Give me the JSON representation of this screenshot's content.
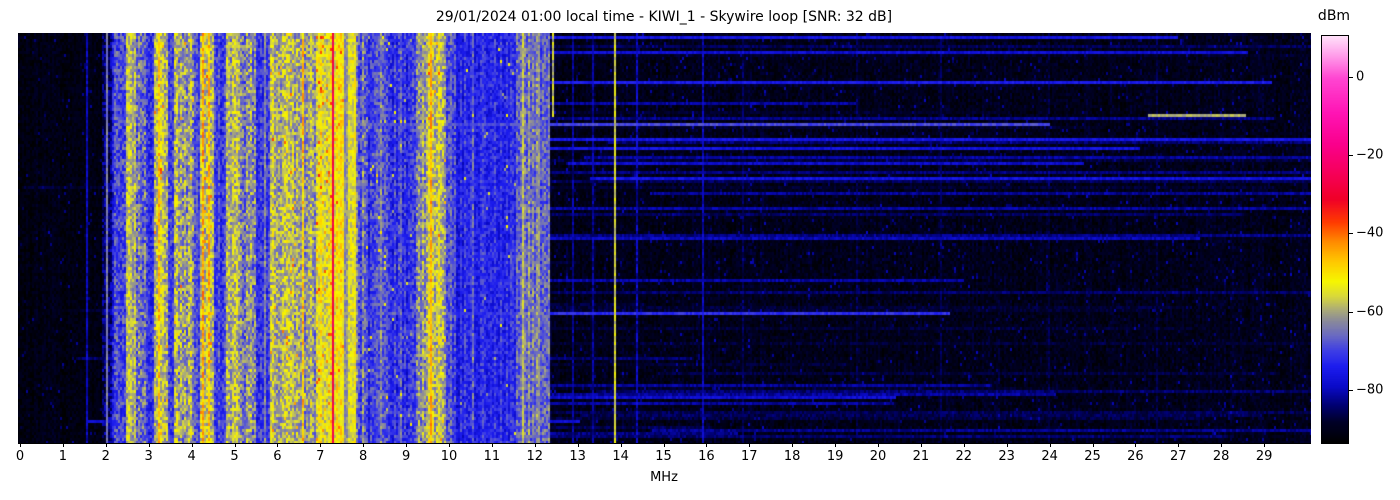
{
  "chart_data": {
    "type": "heatmap",
    "subtype": "hf-spectrum-waterfall",
    "title": "29/01/2024 01:00 local time - KIWI_1 - Skywire loop [SNR: 32 dB]",
    "xlabel": "MHz",
    "x_range": [
      0,
      30.1
    ],
    "x_ticks": [
      0,
      1,
      2,
      3,
      4,
      5,
      6,
      7,
      8,
      9,
      10,
      11,
      12,
      13,
      14,
      15,
      16,
      17,
      18,
      19,
      20,
      21,
      22,
      23,
      24,
      25,
      26,
      27,
      28,
      29
    ],
    "y_axis": "time (unlabeled waterfall rows)",
    "grid": false,
    "seed": 1327,
    "colorbar": {
      "label": "dBm",
      "vmin": -93.3,
      "vmax": 10.7,
      "ticks": [
        {
          "v": 0,
          "label": "0"
        },
        {
          "v": -20,
          "label": "−20"
        },
        {
          "v": -40,
          "label": "−40"
        },
        {
          "v": -60,
          "label": "−60"
        },
        {
          "v": -80,
          "label": "−80"
        }
      ]
    },
    "colormap": {
      "stops": [
        [
          -93.5,
          [
            0,
            0,
            0
          ]
        ],
        [
          -88,
          [
            0,
            0,
            40
          ]
        ],
        [
          -84,
          [
            0,
            0,
            110
          ]
        ],
        [
          -79,
          [
            10,
            10,
            200
          ]
        ],
        [
          -74,
          [
            28,
            28,
            238
          ]
        ],
        [
          -70,
          [
            60,
            60,
            230
          ]
        ],
        [
          -66,
          [
            105,
            105,
            195
          ]
        ],
        [
          -62,
          [
            140,
            140,
            152
          ]
        ],
        [
          -59,
          [
            175,
            175,
            115
          ]
        ],
        [
          -56,
          [
            215,
            215,
            60
          ]
        ],
        [
          -52,
          [
            246,
            246,
            0
          ]
        ],
        [
          -47,
          [
            255,
            200,
            0
          ]
        ],
        [
          -42,
          [
            255,
            140,
            0
          ]
        ],
        [
          -37,
          [
            255,
            60,
            0
          ]
        ],
        [
          -31,
          [
            240,
            0,
            40
          ]
        ],
        [
          -24,
          [
            246,
            0,
            92
          ]
        ],
        [
          -17,
          [
            250,
            0,
            140
          ]
        ],
        [
          -9,
          [
            255,
            20,
            180
          ]
        ],
        [
          0,
          [
            255,
            70,
            210
          ]
        ],
        [
          6,
          [
            255,
            160,
            235
          ]
        ],
        [
          11,
          [
            255,
            228,
            250
          ]
        ]
      ]
    },
    "bands": [
      {
        "range": [
          0.0,
          1.9
        ],
        "level": -91,
        "cell_var": 2.5,
        "col_var": 1.2,
        "dots": {
          "p": 0.02,
          "boost": 7
        }
      },
      {
        "range": [
          1.9,
          2.15
        ],
        "level": -82,
        "cell_var": 6,
        "col_var": 4
      },
      {
        "range": [
          2.15,
          2.45
        ],
        "level": -72,
        "cell_var": 7,
        "col_var": 4
      },
      {
        "range": [
          2.45,
          2.72
        ],
        "level": -58,
        "cell_var": 6,
        "col_var": 3
      },
      {
        "range": [
          2.72,
          2.95
        ],
        "level": -64,
        "cell_var": 8,
        "col_var": 4
      },
      {
        "range": [
          2.95,
          3.12
        ],
        "level": -71,
        "cell_var": 6,
        "col_var": 3
      },
      {
        "range": [
          3.12,
          3.45
        ],
        "level": -58,
        "cell_var": 7,
        "col_var": 3,
        "dots": {
          "p": 0.03,
          "boost": 12
        }
      },
      {
        "range": [
          3.45,
          3.6
        ],
        "level": -70,
        "cell_var": 6,
        "col_var": 3
      },
      {
        "range": [
          3.6,
          4.05
        ],
        "level": -60,
        "cell_var": 8,
        "col_var": 4,
        "dots": {
          "p": 0.02,
          "boost": 12
        }
      },
      {
        "range": [
          4.05,
          4.2
        ],
        "level": -69,
        "cell_var": 6,
        "col_var": 3
      },
      {
        "range": [
          4.2,
          4.5
        ],
        "level": -57,
        "cell_var": 7,
        "col_var": 3,
        "dots": {
          "p": 0.04,
          "boost": 13
        }
      },
      {
        "range": [
          4.5,
          4.78
        ],
        "level": -69,
        "cell_var": 6,
        "col_var": 4
      },
      {
        "range": [
          4.78,
          5.12
        ],
        "level": -59,
        "cell_var": 7,
        "col_var": 3
      },
      {
        "range": [
          5.12,
          5.48
        ],
        "level": -64,
        "cell_var": 8,
        "col_var": 4
      },
      {
        "range": [
          5.48,
          5.85
        ],
        "level": -70,
        "cell_var": 6,
        "col_var": 3
      },
      {
        "range": [
          5.85,
          6.5
        ],
        "level": -58,
        "cell_var": 7,
        "col_var": 4,
        "dots": {
          "p": 0.03,
          "boost": 12
        }
      },
      {
        "range": [
          6.5,
          6.88
        ],
        "level": -60,
        "cell_var": 7,
        "col_var": 4,
        "dots": {
          "p": 0.02,
          "boost": 10
        }
      },
      {
        "range": [
          6.88,
          7.28
        ],
        "level": -54,
        "cell_var": 6,
        "col_var": 3,
        "dots": {
          "p": 0.07,
          "boost": 13
        }
      },
      {
        "range": [
          7.28,
          7.55
        ],
        "level": -52,
        "cell_var": 5,
        "col_var": 3,
        "dots": {
          "p": 0.03,
          "boost": 9
        }
      },
      {
        "range": [
          7.55,
          7.63
        ],
        "level": -61,
        "cell_var": 4,
        "col_var": 2
      },
      {
        "range": [
          7.63,
          7.85
        ],
        "level": -53,
        "cell_var": 5,
        "col_var": 3
      },
      {
        "range": [
          7.85,
          8.08
        ],
        "level": -66,
        "cell_var": 7,
        "col_var": 4
      },
      {
        "range": [
          8.08,
          9.25
        ],
        "level": -71,
        "cell_var": 6,
        "col_var": 4,
        "dots": {
          "p": 0.015,
          "boost": 14
        }
      },
      {
        "range": [
          9.25,
          9.5
        ],
        "level": -62,
        "cell_var": 7,
        "col_var": 3
      },
      {
        "range": [
          9.5,
          9.95
        ],
        "level": -58,
        "cell_var": 7,
        "col_var": 4,
        "dots": {
          "p": 0.03,
          "boost": 10
        }
      },
      {
        "range": [
          9.95,
          10.15
        ],
        "level": -68,
        "cell_var": 6,
        "col_var": 3
      },
      {
        "range": [
          10.15,
          11.55
        ],
        "level": -73,
        "cell_var": 5,
        "col_var": 3,
        "dots": {
          "p": 0.008,
          "boost": 16
        }
      },
      {
        "range": [
          11.55,
          11.85
        ],
        "level": -66,
        "cell_var": 6,
        "col_var": 4
      },
      {
        "range": [
          11.85,
          12.35
        ],
        "level": -65,
        "cell_var": 6,
        "col_var": 4
      },
      {
        "range": [
          12.35,
          30.3
        ],
        "level": -90,
        "cell_var": 2.8,
        "col_var": 1.2,
        "dots": {
          "p": 0.03,
          "boost": 7
        }
      }
    ],
    "carriers": [
      {
        "freq": 1.57,
        "level": -80,
        "var": 3
      },
      {
        "freq": 2.03,
        "level": -64,
        "var": 3
      },
      {
        "freq": 3.25,
        "level": -47,
        "var": 6
      },
      {
        "freq": 4.26,
        "level": -45,
        "var": 6
      },
      {
        "freq": 4.41,
        "level": -46,
        "var": 6
      },
      {
        "freq": 5.71,
        "level": -63,
        "var": 5
      },
      {
        "freq": 6.58,
        "level": -48,
        "var": 7
      },
      {
        "freq": 7.3,
        "level": -27,
        "var": 3
      },
      {
        "freq": 8.4,
        "level": -63,
        "var": 6
      },
      {
        "freq": 9.6,
        "level": -45,
        "var": 5
      },
      {
        "freq": 10.55,
        "level": -66,
        "var": 6
      },
      {
        "freq": 11.72,
        "level": -58,
        "var": 4
      },
      {
        "freq": 12.12,
        "level": -63,
        "var": 5
      },
      {
        "freq": 12.42,
        "level": -58,
        "var": 5,
        "row_to": 0.2
      },
      {
        "freq": 12.9,
        "level": -82,
        "var": 3
      },
      {
        "freq": 13.35,
        "level": -82,
        "var": 3
      },
      {
        "freq": 13.85,
        "level": -56,
        "var": 4
      },
      {
        "freq": 14.38,
        "level": -80,
        "var": 4
      },
      {
        "freq": 15.92,
        "level": -80,
        "var": 3
      },
      {
        "freq": 16.85,
        "level": -85,
        "var": 3
      },
      {
        "freq": 19.5,
        "level": -86,
        "var": 3
      },
      {
        "freq": 21.45,
        "level": -86,
        "var": 3
      },
      {
        "freq": 24.0,
        "level": -87,
        "var": 3
      },
      {
        "freq": 26.5,
        "level": -87,
        "var": 3
      }
    ],
    "streaks": {
      "prob": 0.32,
      "faint": [
        -89,
        -81
      ],
      "medium": [
        -80,
        -75
      ],
      "strong": [
        -73,
        -68
      ],
      "min_span": 0.35,
      "special": {
        "row_frac": 0.2,
        "from_mhz": 26.3,
        "to_mhz": 28.6,
        "level": -59
      }
    }
  }
}
